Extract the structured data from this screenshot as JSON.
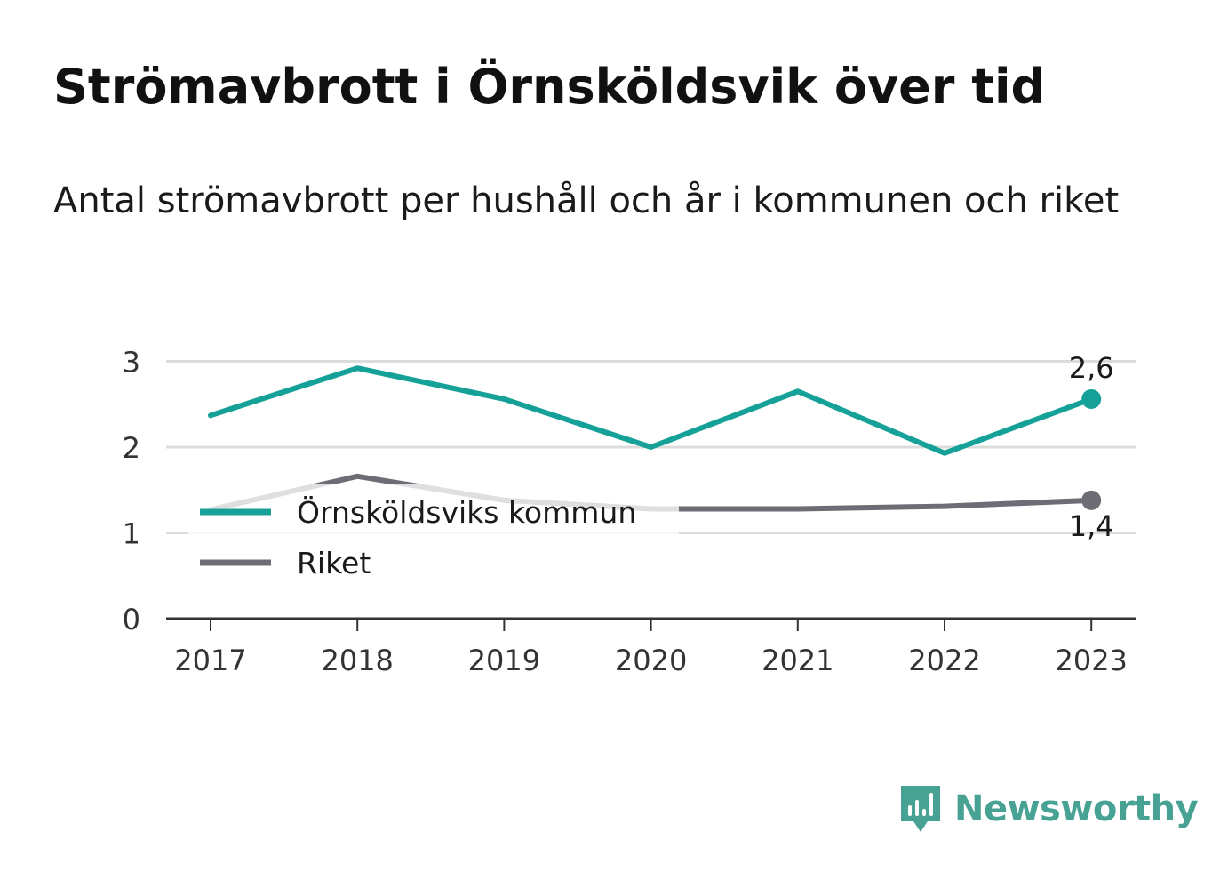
{
  "title": "Strömavbrott i Örnsköldsvik över tid",
  "subtitle": "Antal strömavbrott per hushåll och år i kommunen och riket",
  "brand": {
    "name": "Newsworthy",
    "icon": "newsworthy-logo-icon",
    "color": "#48a294"
  },
  "chart_data": {
    "type": "line",
    "title": "Strömavbrott i Örnsköldsvik över tid",
    "subtitle": "Antal strömavbrott per hushåll och år i kommunen och riket",
    "xlabel": "",
    "ylabel": "",
    "categories": [
      "2017",
      "2018",
      "2019",
      "2020",
      "2021",
      "2022",
      "2023"
    ],
    "y_ticks": [
      "0",
      "1",
      "2",
      "3"
    ],
    "ylim": [
      0,
      3
    ],
    "grid": true,
    "legend_position": "bottom-left",
    "series": [
      {
        "name": "Örnsköldsviks kommun",
        "color": "#15a197",
        "values": [
          2.37,
          2.92,
          2.56,
          2.0,
          2.65,
          1.93,
          2.56
        ],
        "end_label": "2,6"
      },
      {
        "name": "Riket",
        "color": "#6e6d75",
        "values": [
          1.27,
          1.66,
          1.38,
          1.28,
          1.28,
          1.31,
          1.38
        ],
        "end_label": "1,4"
      }
    ]
  }
}
